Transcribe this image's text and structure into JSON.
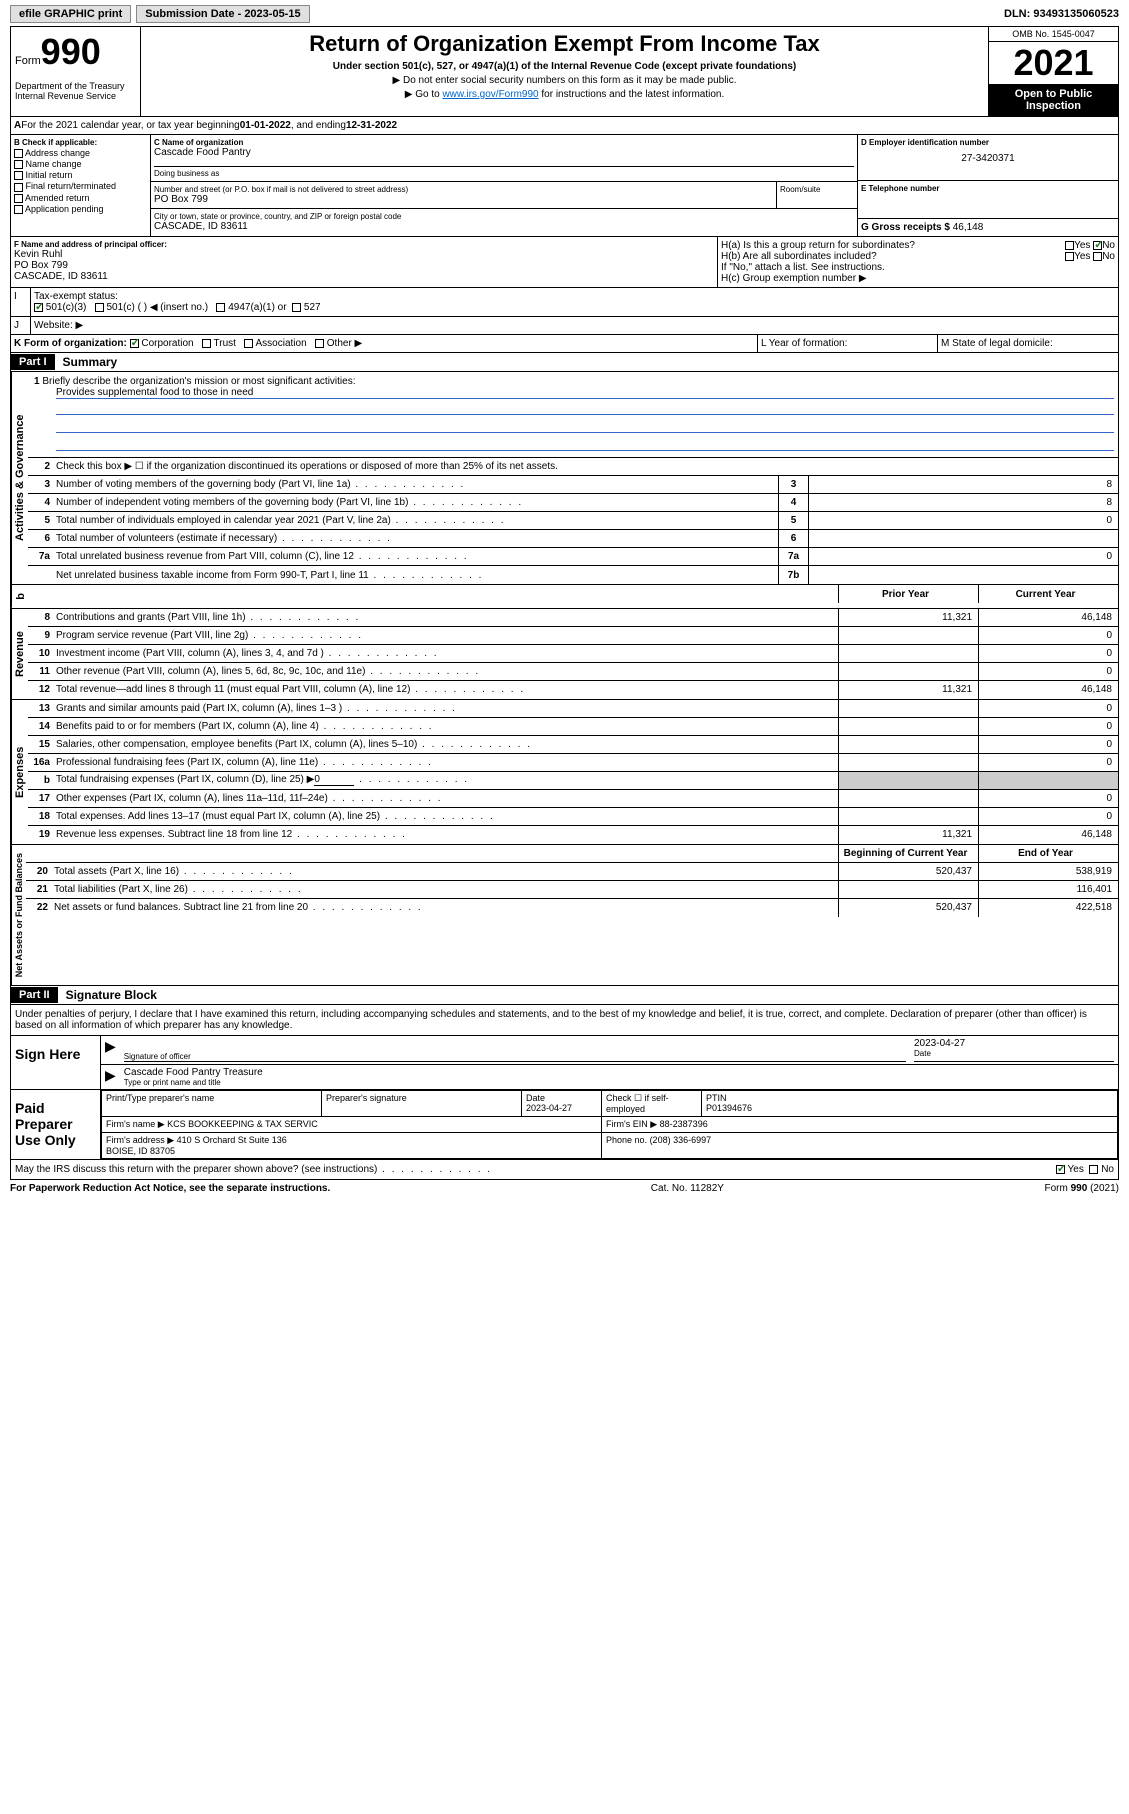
{
  "top": {
    "efile_label": "efile GRAPHIC print",
    "submission_label": "Submission Date - 2023-05-15",
    "dln_label": "DLN: 93493135060523"
  },
  "header": {
    "form_label": "Form",
    "form_number": "990",
    "dept": "Department of the Treasury\nInternal Revenue Service",
    "title": "Return of Organization Exempt From Income Tax",
    "subtitle": "Under section 501(c), 527, or 4947(a)(1) of the Internal Revenue Code (except private foundations)",
    "instr1": "▶ Do not enter social security numbers on this form as it may be made public.",
    "instr2_pre": "▶ Go to ",
    "instr2_link": "www.irs.gov/Form990",
    "instr2_post": " for instructions and the latest information.",
    "omb": "OMB No. 1545-0047",
    "year": "2021",
    "open": "Open to Public Inspection"
  },
  "line_a": {
    "text_pre": "For the 2021 calendar year, or tax year beginning ",
    "begin": "01-01-2022",
    "mid": " , and ending ",
    "end": "12-31-2022"
  },
  "section_b": {
    "label": "B Check if applicable:",
    "items": [
      "Address change",
      "Name change",
      "Initial return",
      "Final return/terminated",
      "Amended return",
      "Application pending"
    ]
  },
  "section_c": {
    "name_label": "C Name of organization",
    "name": "Cascade Food Pantry",
    "dba_label": "Doing business as",
    "addr_label": "Number and street (or P.O. box if mail is not delivered to street address)",
    "room_label": "Room/suite",
    "addr": "PO Box 799",
    "city_label": "City or town, state or province, country, and ZIP or foreign postal code",
    "city": "CASCADE, ID  83611"
  },
  "section_d": {
    "label": "D Employer identification number",
    "value": "27-3420371"
  },
  "section_e": {
    "label": "E Telephone number",
    "value": ""
  },
  "section_g": {
    "label": "G Gross receipts $",
    "value": "46,148"
  },
  "section_f": {
    "label": "F  Name and address of principal officer:",
    "name": "Kevin Ruhl",
    "addr": "PO Box 799",
    "city": "CASCADE, ID  83611"
  },
  "section_h": {
    "ha_label": "H(a)  Is this a group return for subordinates?",
    "hb_label": "H(b)  Are all subordinates included?",
    "hb_note": "If \"No,\" attach a list. See instructions.",
    "hc_label": "H(c)  Group exemption number ▶",
    "yes": "Yes",
    "no": "No"
  },
  "section_i": {
    "label": "Tax-exempt status:",
    "opt1": "501(c)(3)",
    "opt2": "501(c) (   ) ◀ (insert no.)",
    "opt3": "4947(a)(1) or",
    "opt4": "527"
  },
  "section_j": {
    "label": "Website: ▶"
  },
  "section_k": {
    "label": "K Form of organization:",
    "opts": [
      "Corporation",
      "Trust",
      "Association",
      "Other ▶"
    ]
  },
  "section_l": {
    "label": "L Year of formation:"
  },
  "section_m": {
    "label": "M State of legal domicile:"
  },
  "part1": {
    "header": "Part I",
    "title": "Summary",
    "side_label_1": "Activities & Governance",
    "side_label_2": "Revenue",
    "side_label_3": "Expenses",
    "side_label_4": "Net Assets or Fund Balances",
    "line1_label": "Briefly describe the organization's mission or most significant activities:",
    "line1_value": "Provides supplemental food to those in need",
    "line2": "Check this box ▶ ☐  if the organization discontinued its operations or disposed of more than 25% of its net assets.",
    "rows_gov": [
      {
        "n": "3",
        "t": "Number of voting members of the governing body (Part VI, line 1a)",
        "box": "3",
        "v": "8"
      },
      {
        "n": "4",
        "t": "Number of independent voting members of the governing body (Part VI, line 1b)",
        "box": "4",
        "v": "8"
      },
      {
        "n": "5",
        "t": "Total number of individuals employed in calendar year 2021 (Part V, line 2a)",
        "box": "5",
        "v": "0"
      },
      {
        "n": "6",
        "t": "Total number of volunteers (estimate if necessary)",
        "box": "6",
        "v": ""
      },
      {
        "n": "7a",
        "t": "Total unrelated business revenue from Part VIII, column (C), line 12",
        "box": "7a",
        "v": "0"
      },
      {
        "n": "",
        "t": "Net unrelated business taxable income from Form 990-T, Part I, line 11",
        "box": "7b",
        "v": ""
      }
    ],
    "col_prior": "Prior Year",
    "col_current": "Current Year",
    "rows_rev": [
      {
        "n": "8",
        "t": "Contributions and grants (Part VIII, line 1h)",
        "p": "11,321",
        "c": "46,148"
      },
      {
        "n": "9",
        "t": "Program service revenue (Part VIII, line 2g)",
        "p": "",
        "c": "0"
      },
      {
        "n": "10",
        "t": "Investment income (Part VIII, column (A), lines 3, 4, and 7d )",
        "p": "",
        "c": "0"
      },
      {
        "n": "11",
        "t": "Other revenue (Part VIII, column (A), lines 5, 6d, 8c, 9c, 10c, and 11e)",
        "p": "",
        "c": "0"
      },
      {
        "n": "12",
        "t": "Total revenue—add lines 8 through 11 (must equal Part VIII, column (A), line 12)",
        "p": "11,321",
        "c": "46,148"
      }
    ],
    "rows_exp": [
      {
        "n": "13",
        "t": "Grants and similar amounts paid (Part IX, column (A), lines 1–3 )",
        "p": "",
        "c": "0"
      },
      {
        "n": "14",
        "t": "Benefits paid to or for members (Part IX, column (A), line 4)",
        "p": "",
        "c": "0"
      },
      {
        "n": "15",
        "t": "Salaries, other compensation, employee benefits (Part IX, column (A), lines 5–10)",
        "p": "",
        "c": "0"
      },
      {
        "n": "16a",
        "t": "Professional fundraising fees (Part IX, column (A), line 11e)",
        "p": "",
        "c": "0"
      },
      {
        "n": "b",
        "t": "Total fundraising expenses (Part IX, column (D), line 25) ▶",
        "p": "gray",
        "c": "gray",
        "extra": "0"
      },
      {
        "n": "17",
        "t": "Other expenses (Part IX, column (A), lines 11a–11d, 11f–24e)",
        "p": "",
        "c": "0"
      },
      {
        "n": "18",
        "t": "Total expenses. Add lines 13–17 (must equal Part IX, column (A), line 25)",
        "p": "",
        "c": "0"
      },
      {
        "n": "19",
        "t": "Revenue less expenses. Subtract line 18 from line 12",
        "p": "11,321",
        "c": "46,148"
      }
    ],
    "col_begin": "Beginning of Current Year",
    "col_end": "End of Year",
    "rows_net": [
      {
        "n": "20",
        "t": "Total assets (Part X, line 16)",
        "p": "520,437",
        "c": "538,919"
      },
      {
        "n": "21",
        "t": "Total liabilities (Part X, line 26)",
        "p": "",
        "c": "116,401"
      },
      {
        "n": "22",
        "t": "Net assets or fund balances. Subtract line 21 from line 20",
        "p": "520,437",
        "c": "422,518"
      }
    ]
  },
  "part2": {
    "header": "Part II",
    "title": "Signature Block",
    "declaration": "Under penalties of perjury, I declare that I have examined this return, including accompanying schedules and statements, and to the best of my knowledge and belief, it is true, correct, and complete. Declaration of preparer (other than officer) is based on all information of which preparer has any knowledge.",
    "sign_here": "Sign Here",
    "sig_officer": "Signature of officer",
    "sig_date": "Date",
    "sig_date_val": "2023-04-27",
    "sig_name_title": "Cascade Food Pantry Treasure",
    "sig_name_label": "Type or print name and title",
    "paid_prep": "Paid Preparer Use Only",
    "prep_name_label": "Print/Type preparer's name",
    "prep_sig_label": "Preparer's signature",
    "prep_date_label": "Date",
    "prep_date": "2023-04-27",
    "prep_check_label": "Check ☐ if self-employed",
    "ptin_label": "PTIN",
    "ptin": "P01394676",
    "firm_name_label": "Firm's name    ▶",
    "firm_name": "KCS BOOKKEEPING & TAX SERVIC",
    "firm_ein_label": "Firm's EIN ▶",
    "firm_ein": "88-2387396",
    "firm_addr_label": "Firm's address ▶",
    "firm_addr": "410 S Orchard St Suite 136\nBOISE, ID  83705",
    "phone_label": "Phone no.",
    "phone": "(208) 336-6997",
    "discuss": "May the IRS discuss this return with the preparer shown above? (see instructions)",
    "yes": "Yes",
    "no": "No"
  },
  "footer": {
    "left": "For Paperwork Reduction Act Notice, see the separate instructions.",
    "center": "Cat. No. 11282Y",
    "right": "Form 990 (2021)"
  },
  "colors": {
    "link": "#0066cc",
    "check_green": "#1a7a1a",
    "rule_blue": "#3366cc",
    "gray_fill": "#cccccc"
  }
}
